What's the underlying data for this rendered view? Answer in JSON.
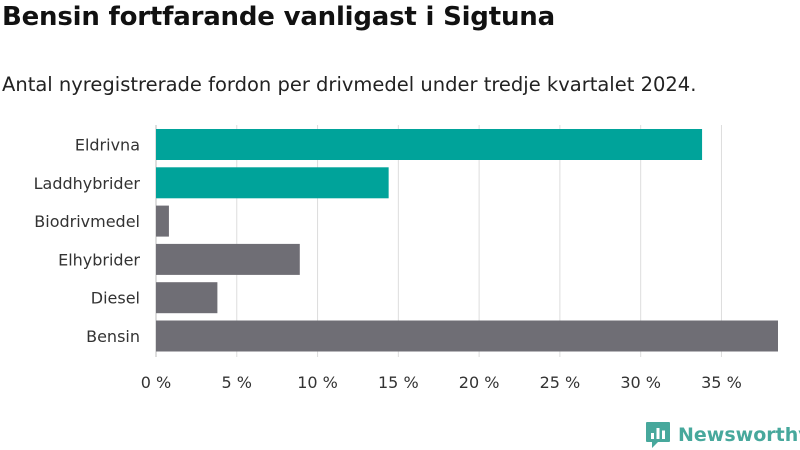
{
  "chart_data": {
    "type": "bar",
    "orientation": "horizontal",
    "title": "Bensin fortfarande vanligast i Sigtuna",
    "subtitle": "Antal nyregistrerade fordon per drivmedel under tredje kvartalet 2024.",
    "categories": [
      "Eldrivna",
      "Laddhybrider",
      "Biodrivmedel",
      "Elhybrider",
      "Diesel",
      "Bensin"
    ],
    "values": [
      33.8,
      14.4,
      0.8,
      8.9,
      3.8,
      38.5
    ],
    "colors": [
      "#00a39a",
      "#00a39a",
      "#6f6e75",
      "#6f6e75",
      "#6f6e75",
      "#6f6e75"
    ],
    "unit": "%",
    "xlim": [
      0,
      38.5
    ],
    "xticks": [
      0,
      5,
      10,
      15,
      20,
      25,
      30,
      35
    ],
    "xtick_labels": [
      "0 %",
      "5 %",
      "10 %",
      "15 %",
      "20 %",
      "25 %",
      "30 %",
      "35 %"
    ],
    "grid": true,
    "legend": "none"
  },
  "brand": {
    "name": "Newsworthy",
    "icon": "newsworthy-logo-icon",
    "color": "#47a89c"
  }
}
